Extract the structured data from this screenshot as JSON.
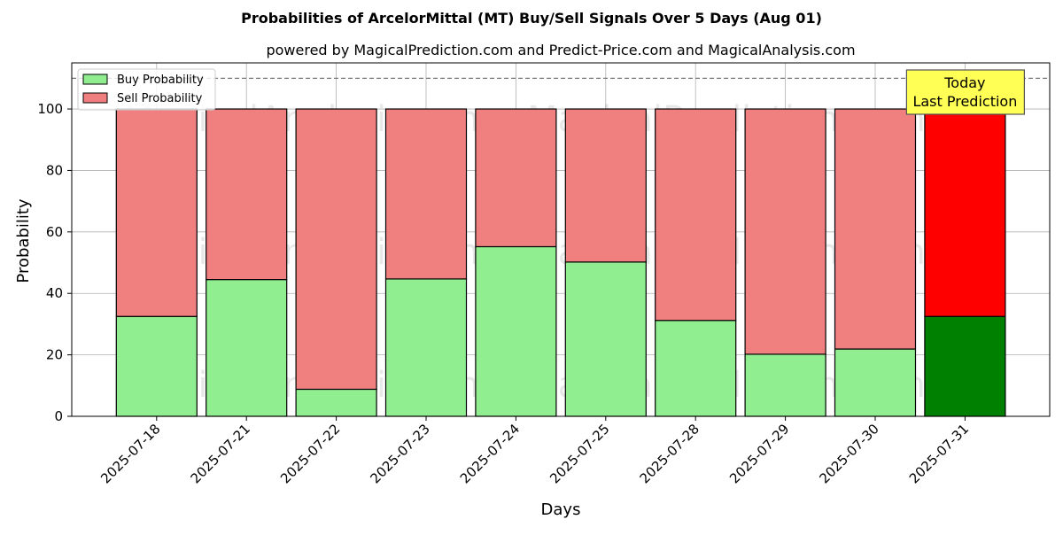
{
  "chart_data": {
    "type": "bar",
    "stacked": true,
    "title": "Probabilities of ArcelorMittal (MT) Buy/Sell Signals Over 5 Days (Aug 01)",
    "subtitle": "powered by MagicalPrediction.com and Predict-Price.com and MagicalAnalysis.com",
    "xlabel": "Days",
    "ylabel": "Probability",
    "ylim": [
      0,
      115
    ],
    "yticks": [
      0,
      20,
      40,
      60,
      80,
      100
    ],
    "grid": true,
    "legend_position": "top-left",
    "categories": [
      "2025-07-18",
      "2025-07-21",
      "2025-07-22",
      "2025-07-23",
      "2025-07-24",
      "2025-07-25",
      "2025-07-28",
      "2025-07-29",
      "2025-07-30",
      "2025-07-31"
    ],
    "series": [
      {
        "name": "Buy Probability",
        "color": "#90ee90",
        "highlight_color": "#008000",
        "values": [
          32.5,
          44.5,
          8.8,
          44.7,
          55.2,
          50.2,
          31.2,
          20.2,
          21.9,
          32.5
        ]
      },
      {
        "name": "Sell Probability",
        "color": "#f08080",
        "highlight_color": "#ff0000",
        "values": [
          67.5,
          55.5,
          91.2,
          55.3,
          44.8,
          49.8,
          68.8,
          79.8,
          78.1,
          67.5
        ]
      }
    ],
    "reference_line": {
      "y": 110,
      "style": "dashed"
    },
    "highlight_index": 9,
    "annotation": {
      "lines": [
        "Today",
        "Last Prediction"
      ],
      "background": "#ffff55"
    },
    "watermarks": [
      "MagicalAnalysis.com",
      "MagicalPrediction.com"
    ]
  }
}
